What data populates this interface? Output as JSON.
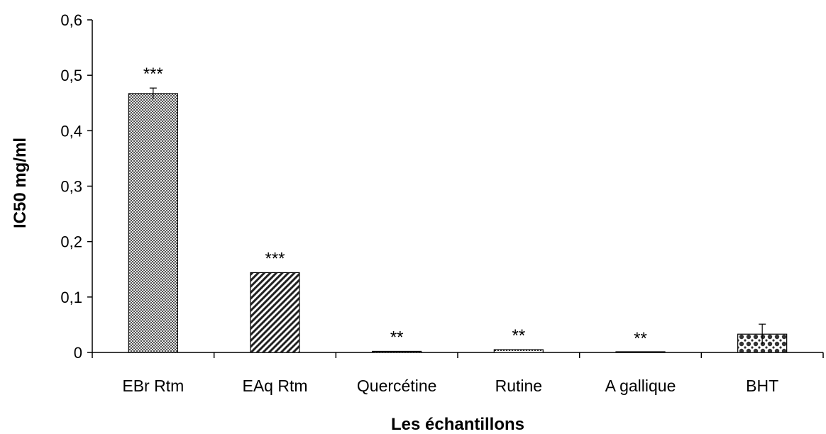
{
  "chart_data": {
    "type": "bar",
    "title": "",
    "xlabel": "Les échantillons",
    "ylabel": "IC50 mg/ml",
    "ylim": [
      0,
      0.6
    ],
    "yticks": [
      "0",
      "0,1",
      "0,2",
      "0,3",
      "0,4",
      "0,5",
      "0,6"
    ],
    "categories": [
      "EBr Rtm",
      "EAq Rtm",
      "Quercétine",
      "Rutine",
      "A gallique",
      "BHT"
    ],
    "values": [
      0.467,
      0.144,
      0.002,
      0.005,
      0.0,
      0.033
    ],
    "errors": [
      0.01,
      0.0,
      0.0,
      0.0,
      0.0,
      0.018
    ],
    "significance": [
      "***",
      "***",
      "**",
      "**",
      "**",
      ""
    ],
    "patterns": [
      "dense-dots",
      "diagonal-stripes",
      "dense-dots",
      "dotted",
      "dotted",
      "checker"
    ],
    "grid": false,
    "legend": "none"
  }
}
